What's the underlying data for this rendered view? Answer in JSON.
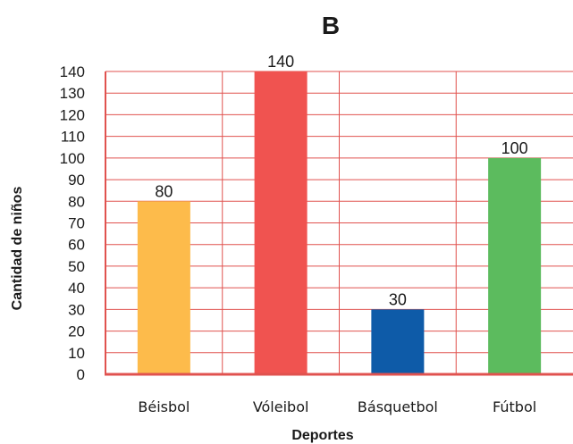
{
  "chart_data": {
    "type": "bar",
    "title": "B",
    "xlabel": "Deportes",
    "ylabel": "Cantidad de niños",
    "categories": [
      "Béisbol",
      "Vóleibol",
      "Básquetbol",
      "Fútbol"
    ],
    "values": [
      80,
      140,
      30,
      100
    ],
    "data_labels": [
      "80",
      "140",
      "30",
      "100"
    ],
    "bar_colors": [
      "#fdbb4b",
      "#f05350",
      "#0e5ba8",
      "#5cbb5e"
    ],
    "ylim": [
      0,
      140
    ],
    "yticks": [
      0,
      10,
      20,
      30,
      40,
      50,
      60,
      70,
      80,
      90,
      100,
      110,
      120,
      130,
      140
    ],
    "ytick_labels": [
      "0",
      "10",
      "20",
      "30",
      "40",
      "50",
      "60",
      "70",
      "80",
      "90",
      "100",
      "110",
      "120",
      "130",
      "140"
    ],
    "grid": true,
    "grid_color": "#e0524f",
    "legend": "none"
  }
}
